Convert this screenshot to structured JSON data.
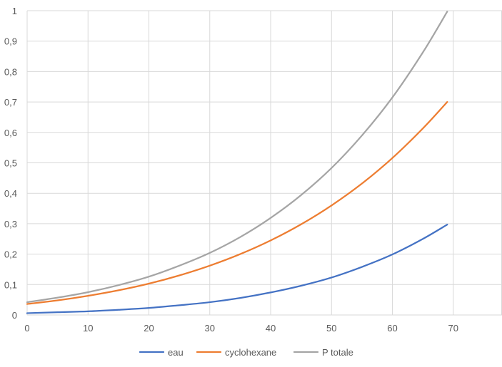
{
  "chart_data": {
    "type": "line",
    "title": "",
    "xlabel": "",
    "ylabel": "",
    "xlim": [
      0,
      78
    ],
    "ylim": [
      0,
      1
    ],
    "x_ticks": [
      0,
      10,
      20,
      30,
      40,
      50,
      60,
      70
    ],
    "y_ticks": [
      0,
      0.1,
      0.2,
      0.3,
      0.4,
      0.5,
      0.6,
      0.7,
      0.8,
      0.9,
      1
    ],
    "x_tick_labels": [
      "0",
      "10",
      "20",
      "30",
      "40",
      "50",
      "60",
      "70"
    ],
    "y_tick_labels": [
      "0",
      "0,1",
      "0,2",
      "0,3",
      "0,4",
      "0,5",
      "0,6",
      "0,7",
      "0,8",
      "0,9",
      "1"
    ],
    "grid": true,
    "legend_position": "bottom",
    "x": [
      0,
      5,
      10,
      15,
      20,
      25,
      30,
      35,
      40,
      45,
      50,
      55,
      60,
      65,
      69
    ],
    "series": [
      {
        "name": "eau",
        "color": "#4472C4",
        "values": [
          0.006,
          0.009,
          0.012,
          0.017,
          0.023,
          0.032,
          0.042,
          0.056,
          0.074,
          0.096,
          0.123,
          0.158,
          0.199,
          0.25,
          0.297
        ]
      },
      {
        "name": "cyclohexane",
        "color": "#ED7D31",
        "values": [
          0.036,
          0.048,
          0.063,
          0.081,
          0.103,
          0.13,
          0.162,
          0.2,
          0.245,
          0.298,
          0.36,
          0.432,
          0.516,
          0.613,
          0.7
        ]
      },
      {
        "name": "P totale",
        "color": "#A5A5A5",
        "values": [
          0.042,
          0.057,
          0.075,
          0.098,
          0.126,
          0.162,
          0.204,
          0.256,
          0.319,
          0.394,
          0.483,
          0.59,
          0.715,
          0.863,
          0.997
        ]
      }
    ]
  }
}
